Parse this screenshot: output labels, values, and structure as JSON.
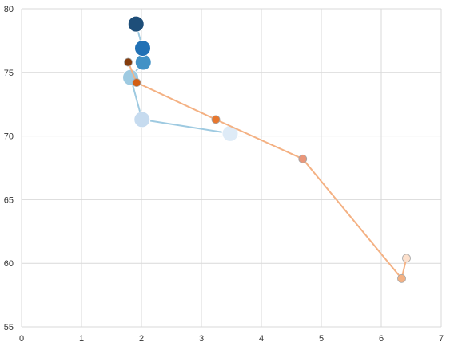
{
  "chart_data": {
    "type": "scatter",
    "xlim": [
      0,
      7
    ],
    "ylim": [
      55,
      80
    ],
    "x_ticks": [
      "0",
      "1",
      "2",
      "3",
      "4",
      "5",
      "6",
      "7"
    ],
    "y_ticks": [
      "55",
      "60",
      "65",
      "70",
      "75",
      "80"
    ],
    "grid": true,
    "legend": "none",
    "series": [
      {
        "color": "#9ecae1",
        "line_color": "#9ecae1",
        "marker_style": "large",
        "points": [
          {
            "x": 3.48,
            "y": 70.2,
            "color": "#deebf7"
          },
          {
            "x": 2.01,
            "y": 71.3,
            "color": "#c6dbef"
          },
          {
            "x": 1.82,
            "y": 74.6,
            "color": "#9ecae1"
          },
          {
            "x": 2.03,
            "y": 75.8,
            "color": "#4292c6"
          },
          {
            "x": 2.02,
            "y": 76.9,
            "color": "#2171b5"
          },
          {
            "x": 1.91,
            "y": 78.8,
            "color": "#1e4e79"
          }
        ]
      },
      {
        "color": "#fdae6b",
        "line_color": "#f4b183",
        "marker_style": "small",
        "points": [
          {
            "x": 6.42,
            "y": 60.4,
            "color": "#fde0cc"
          },
          {
            "x": 6.34,
            "y": 58.8,
            "color": "#f4b183"
          },
          {
            "x": 4.69,
            "y": 68.2,
            "color": "#e9967a"
          },
          {
            "x": 3.24,
            "y": 71.3,
            "color": "#e8772e"
          },
          {
            "x": 1.92,
            "y": 74.2,
            "color": "#d35f14"
          },
          {
            "x": 1.78,
            "y": 75.8,
            "color": "#843c0c"
          }
        ]
      }
    ]
  }
}
